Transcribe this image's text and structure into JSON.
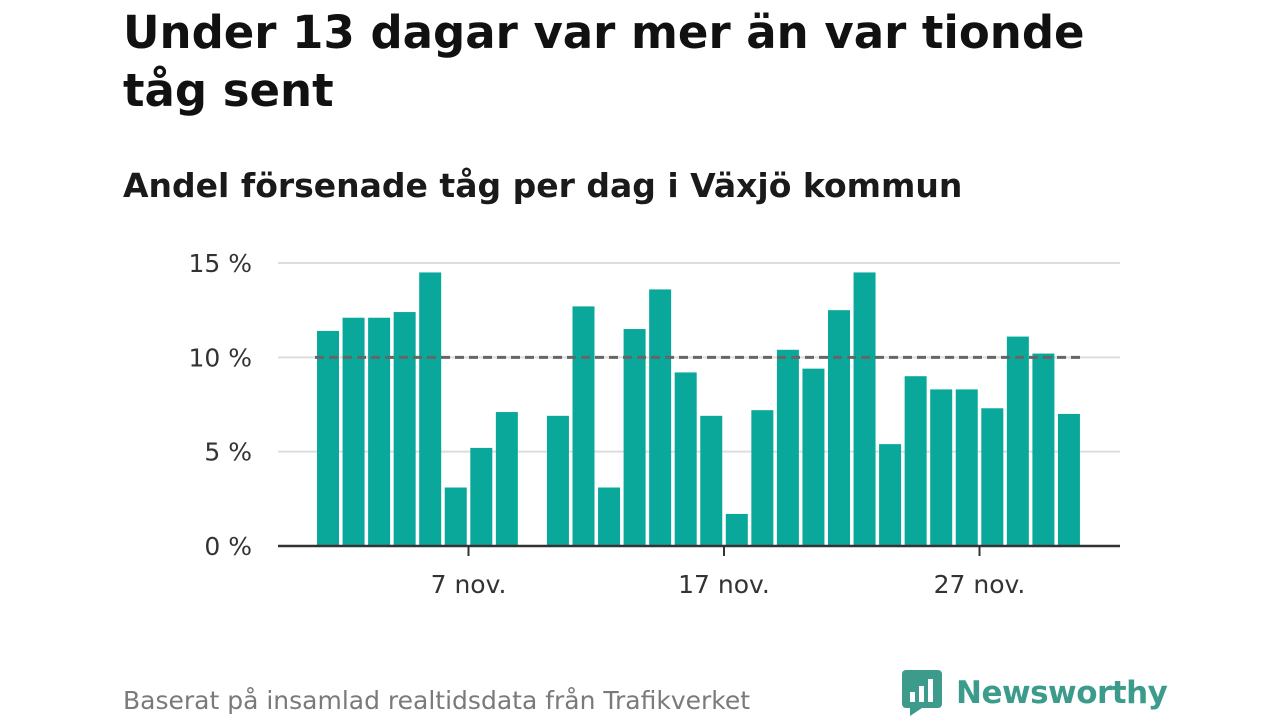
{
  "title": "Under 13 dagar var mer än var tionde tåg sent",
  "subtitle": "Andel försenade tåg per dag i Växjö kommun",
  "source": "Baserat på insamlad realtidsdata från Trafikverket",
  "logo": {
    "text": "Newsworthy",
    "icon": "newsworthy-chart-icon",
    "color": "#3d9b8c"
  },
  "chart_data": {
    "type": "bar",
    "x": [
      "2019-11-01",
      "2019-11-02",
      "2019-11-03",
      "2019-11-04",
      "2019-11-05",
      "2019-11-06",
      "2019-11-07",
      "2019-11-08",
      "2019-11-09",
      "2019-11-10",
      "2019-11-11",
      "2019-11-12",
      "2019-11-13",
      "2019-11-14",
      "2019-11-15",
      "2019-11-16",
      "2019-11-17",
      "2019-11-18",
      "2019-11-19",
      "2019-11-20",
      "2019-11-21",
      "2019-11-22",
      "2019-11-23",
      "2019-11-24",
      "2019-11-25",
      "2019-11-26",
      "2019-11-27",
      "2019-11-28",
      "2019-11-29",
      "2019-11-30"
    ],
    "values": [
      11.4,
      12.1,
      12.1,
      12.4,
      14.5,
      3.1,
      5.2,
      7.1,
      null,
      6.9,
      12.7,
      3.1,
      11.5,
      13.6,
      9.2,
      6.9,
      1.7,
      7.2,
      10.4,
      9.4,
      12.5,
      14.5,
      5.4,
      9.0,
      8.3,
      8.3,
      7.3,
      11.1,
      10.2,
      7.0
    ],
    "ylim": [
      0,
      15
    ],
    "yticks": [
      0,
      5,
      10,
      15
    ],
    "ytick_labels": [
      "0 %",
      "5 %",
      "10 %",
      "15 %"
    ],
    "xticks": [
      "2019-11-07",
      "2019-11-17",
      "2019-11-27"
    ],
    "xtick_labels": [
      "7 nov.",
      "17 nov.",
      "27 nov."
    ],
    "reference_line": 10,
    "grid": true,
    "colors": {
      "bar": "#0aa89a",
      "grid": "#dddddd",
      "reference": "#666666",
      "axis": "#333333"
    }
  }
}
